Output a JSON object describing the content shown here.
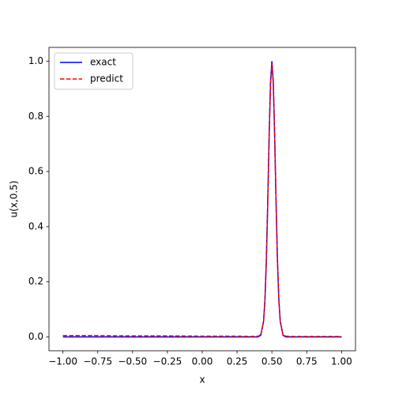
{
  "chart_data": {
    "type": "line",
    "x_label": "x",
    "y_label": "u(x,0.5)",
    "x": [
      -1.0,
      -0.75,
      -0.5,
      -0.25,
      0.0,
      0.25,
      0.35,
      0.4,
      0.42,
      0.44,
      0.45,
      0.46,
      0.47,
      0.48,
      0.49,
      0.5,
      0.51,
      0.52,
      0.53,
      0.54,
      0.55,
      0.56,
      0.58,
      0.6,
      0.65,
      0.75,
      1.0
    ],
    "series": [
      {
        "name": "exact",
        "color": "#0000ff",
        "dash": false,
        "values": [
          0,
          0,
          0,
          0,
          0,
          0,
          0,
          0.0003,
          0.006,
          0.056,
          0.135,
          0.278,
          0.487,
          0.726,
          0.923,
          1.0,
          0.923,
          0.726,
          0.487,
          0.278,
          0.135,
          0.056,
          0.006,
          0.0003,
          0,
          0,
          0
        ]
      },
      {
        "name": "predict",
        "color": "#ff0000",
        "dash": true,
        "values": [
          0.005,
          0.005,
          0.004,
          0.004,
          0.003,
          0.003,
          0.002,
          0.003,
          0.008,
          0.055,
          0.13,
          0.27,
          0.48,
          0.72,
          0.915,
          0.99,
          0.915,
          0.72,
          0.48,
          0.27,
          0.13,
          0.055,
          0.008,
          0.003,
          0.002,
          0.002,
          0.002
        ]
      }
    ],
    "xlim": [
      -1.1,
      1.1
    ],
    "ylim": [
      -0.05,
      1.05
    ],
    "xticks": [
      {
        "value": -1.0,
        "label": "−1.00"
      },
      {
        "value": -0.75,
        "label": "−0.75"
      },
      {
        "value": -0.5,
        "label": "−0.50"
      },
      {
        "value": -0.25,
        "label": "−0.25"
      },
      {
        "value": 0.0,
        "label": "0.00"
      },
      {
        "value": 0.25,
        "label": "0.25"
      },
      {
        "value": 0.5,
        "label": "0.50"
      },
      {
        "value": 0.75,
        "label": "0.75"
      },
      {
        "value": 1.0,
        "label": "1.00"
      }
    ],
    "yticks": [
      {
        "value": 0.0,
        "label": "0.0"
      },
      {
        "value": 0.2,
        "label": "0.2"
      },
      {
        "value": 0.4,
        "label": "0.4"
      },
      {
        "value": 0.6,
        "label": "0.6"
      },
      {
        "value": 0.8,
        "label": "0.8"
      },
      {
        "value": 1.0,
        "label": "1.0"
      }
    ],
    "grid": false,
    "legend": "upper-left"
  }
}
